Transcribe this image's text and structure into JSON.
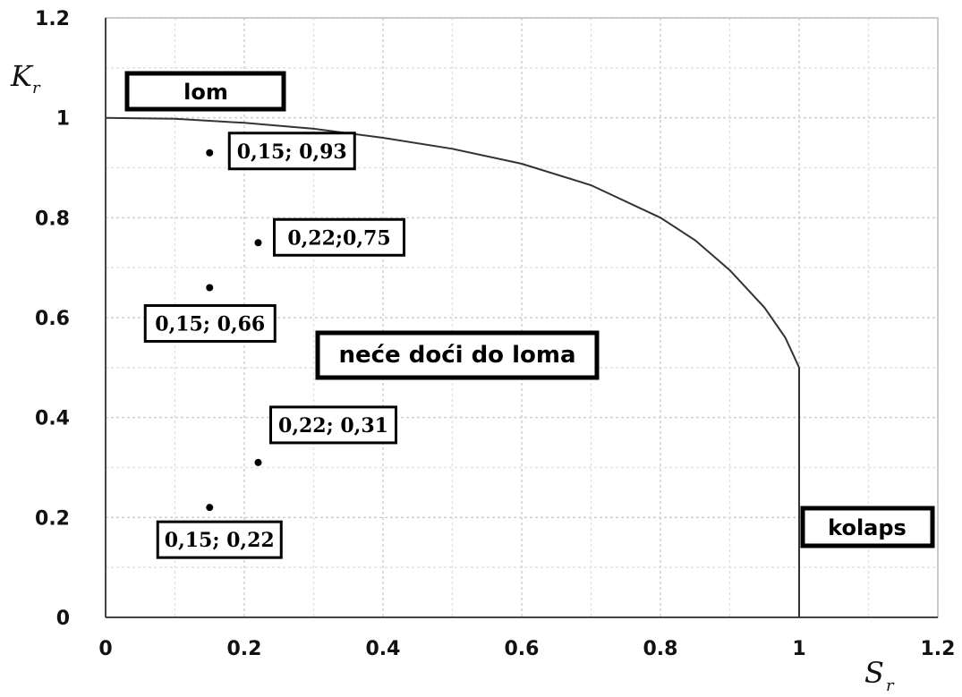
{
  "chart_data": {
    "type": "line",
    "xlabel": {
      "main": "S",
      "sub": "r"
    },
    "ylabel": {
      "main": "K",
      "sub": "r"
    },
    "xlim": [
      0,
      1.2
    ],
    "ylim": [
      0,
      1.2
    ],
    "grid": true,
    "x_ticks": [
      "0",
      "0.2",
      "0.4",
      "0.6",
      "0.8",
      "1",
      "1.2"
    ],
    "y_ticks": [
      "0",
      "0.2",
      "0.4",
      "0.6",
      "0.8",
      "1",
      "1.2"
    ],
    "curve": {
      "x": [
        0,
        0.1,
        0.2,
        0.3,
        0.4,
        0.5,
        0.6,
        0.7,
        0.8,
        0.85,
        0.9,
        0.95,
        0.98,
        0.99,
        1.0,
        1.0
      ],
      "y": [
        1.0,
        0.998,
        0.99,
        0.978,
        0.96,
        0.938,
        0.908,
        0.865,
        0.8,
        0.755,
        0.695,
        0.62,
        0.56,
        0.53,
        0.5,
        0.0
      ]
    },
    "points": [
      {
        "x": 0.15,
        "y": 0.93,
        "label": "0,15; 0,93"
      },
      {
        "x": 0.22,
        "y": 0.75,
        "label": "0,22;0,75"
      },
      {
        "x": 0.15,
        "y": 0.66,
        "label": "0,15; 0,66"
      },
      {
        "x": 0.22,
        "y": 0.31,
        "label": "0,22; 0,31"
      },
      {
        "x": 0.15,
        "y": 0.22,
        "label": "0,15; 0,22"
      }
    ],
    "regions": {
      "fracture": "lom",
      "safe": "neće doći do loma",
      "collapse": "kolaps"
    }
  }
}
